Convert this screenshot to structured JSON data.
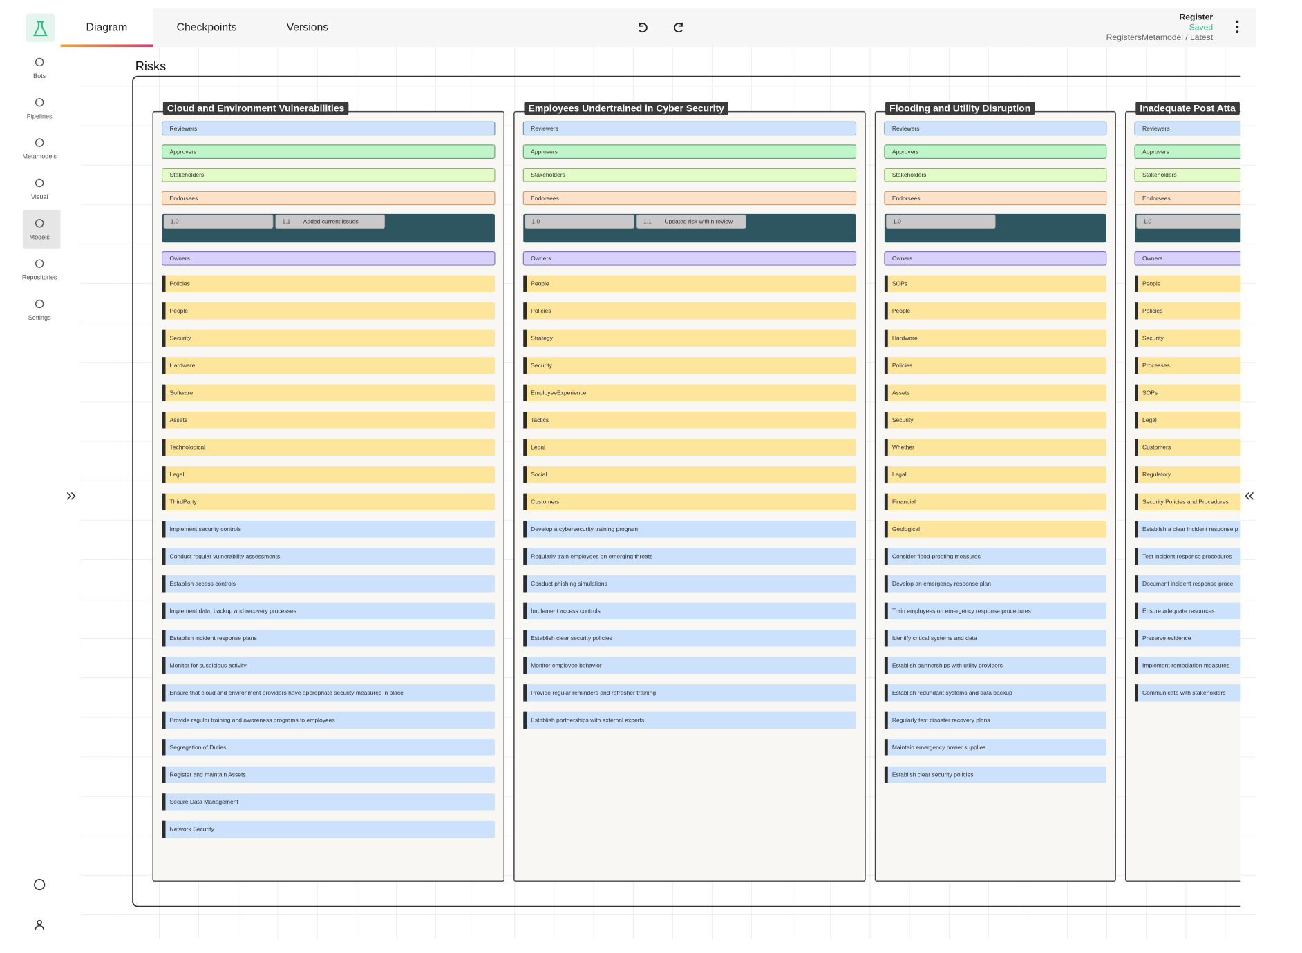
{
  "tabs": [
    "Diagram",
    "Checkpoints",
    "Versions"
  ],
  "sidebar": [
    "Bots",
    "Pipelines",
    "Metamodels",
    "Visual",
    "Models",
    "Repositories",
    "Settings"
  ],
  "header": {
    "name": "Register",
    "status": "Saved",
    "path": "RegistersMetamodel / Latest"
  },
  "board": {
    "title": "Risks",
    "columns": [
      {
        "title": "Cloud and Environment Vulnerabilities",
        "roles": [
          "Reviewers",
          "Approvers",
          "Stakeholders",
          "Endorsees"
        ],
        "versions": [
          {
            "number": "1.0"
          },
          {
            "number": "1.1",
            "note": "Added current issues"
          }
        ],
        "owners": "Owners",
        "categories": [
          "Policies",
          "People",
          "Security",
          "Hardware",
          "Software",
          "Assets",
          "Technological",
          "Legal",
          "ThirdParty"
        ],
        "controls": [
          "Implement security controls",
          "Conduct regular vulnerability assessments",
          "Establish access controls",
          "Implement data, backup and recovery processes",
          "Establish incident response plans",
          "Monitor for suspicious activity",
          "Ensure that cloud and environment providers have appropriate security measures in place",
          "Provide regular training and awareness programs to employees",
          "Segregation of Duties",
          "Register and maintain Assets",
          "Secure Data Management",
          "Network Security"
        ]
      },
      {
        "title": "Employees Undertrained in Cyber Security",
        "roles": [
          "Reviewers",
          "Approvers",
          "Stakeholders",
          "Endorsees"
        ],
        "versions": [
          {
            "number": "1.0"
          },
          {
            "number": "1.1",
            "note": "Updated risk within review"
          }
        ],
        "owners": "Owners",
        "categories": [
          "People",
          "Policies",
          "Strategy",
          "Security",
          "EmployeeExperience",
          "Tactics",
          "Legal",
          "Social",
          "Customers"
        ],
        "controls": [
          "Develop a cybersecurity training program",
          "Regularly train employees on emerging threats",
          "Conduct phishing simulations",
          "Implement access controls",
          "Establish clear security policies",
          "Monitor employee behavior",
          "Provide regular reminders and refresher training",
          "Establish partnerships with external experts"
        ]
      },
      {
        "title": "Flooding and Utility Disruption",
        "roles": [
          "Reviewers",
          "Approvers",
          "Stakeholders",
          "Endorsees"
        ],
        "versions": [
          {
            "number": "1.0"
          }
        ],
        "owners": "Owners",
        "categories": [
          "SOPs",
          "People",
          "Hardware",
          "Policies",
          "Assets",
          "Security",
          "Whether",
          "Legal",
          "Financial",
          "Geological"
        ],
        "controls": [
          "Consider flood-proofing measures",
          "Develop an emergency response plan",
          "Train employees on emergency response procedures",
          "Identify critical systems and data",
          "Establish partnerships with utility providers",
          "Establish redundant systems and data backup",
          "Regularly test disaster recovery plans",
          "Maintain emergency power supplies",
          "Establish clear security policies"
        ]
      },
      {
        "title": "Inadequate Post Atta",
        "roles": [
          "Reviewers",
          "Approvers",
          "Stakeholders",
          "Endorsees"
        ],
        "versions": [
          {
            "number": "1.0"
          }
        ],
        "owners": "Owners",
        "categories": [
          "People",
          "Policies",
          "Security",
          "Processes",
          "SOPs",
          "Legal",
          "Customers",
          "Regulatory",
          "Security Policies and Procedures"
        ],
        "controls": [
          "Establish a clear incident response p",
          "Test incident response procedures",
          "Document incident response proce",
          "Ensure adequate resources",
          "Preserve evidence",
          "Implement remediation measures",
          "Communicate with stakeholders"
        ]
      }
    ]
  }
}
